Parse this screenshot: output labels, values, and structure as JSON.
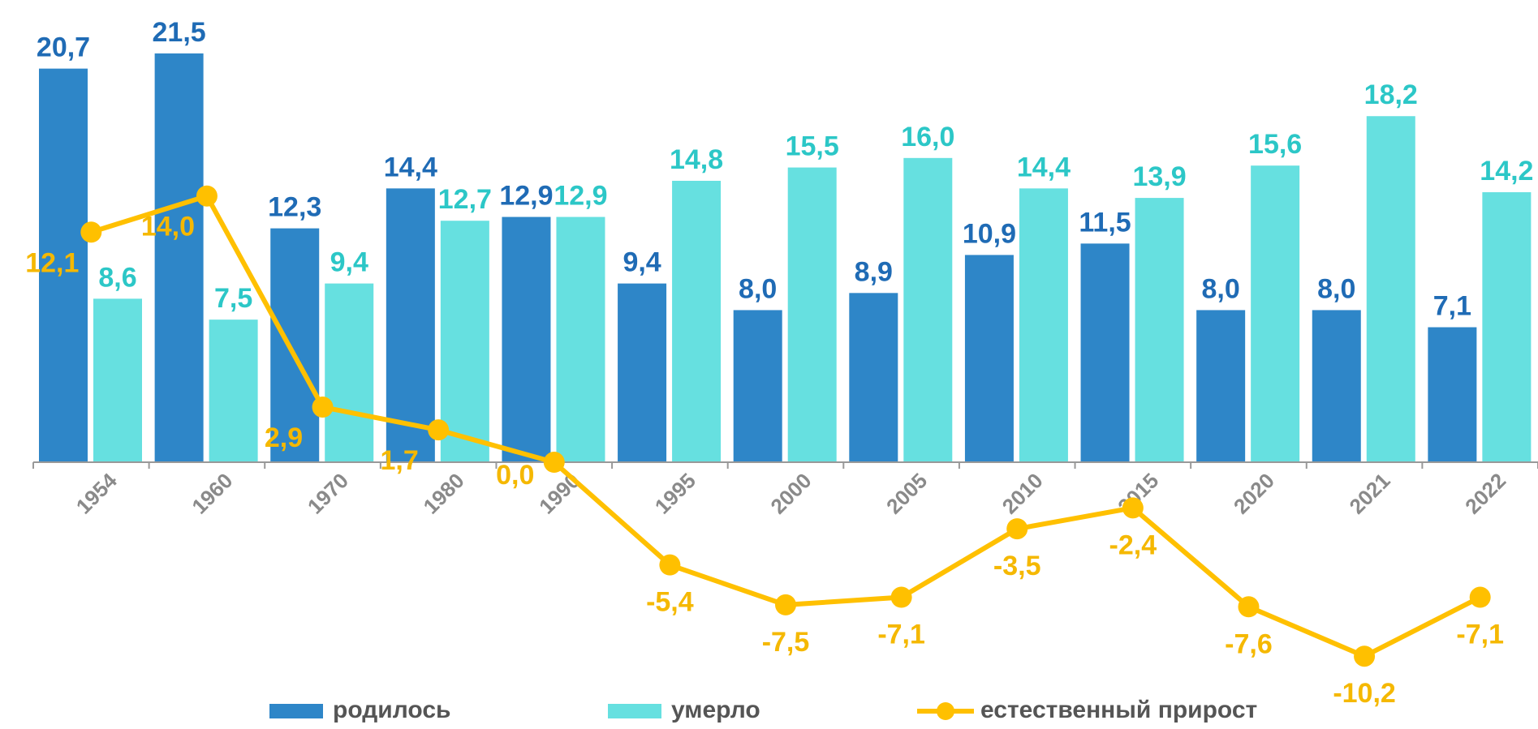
{
  "chart_data": {
    "type": "bar",
    "categories": [
      "1954",
      "1960",
      "1970",
      "1980",
      "1990",
      "1995",
      "2000",
      "2005",
      "2010",
      "2015",
      "2020",
      "2021",
      "2022"
    ],
    "ylim": [
      -11,
      22.5
    ],
    "series": [
      {
        "name": "родилось",
        "type": "bar",
        "color": "#2e86c8",
        "label_color": "#1f6bb5",
        "values": [
          20.7,
          21.5,
          12.3,
          14.4,
          12.9,
          9.4,
          8.0,
          8.9,
          10.9,
          11.5,
          8.0,
          8.0,
          7.1
        ],
        "value_labels": [
          "20,7",
          "21,5",
          "12,3",
          "14,4",
          "12,9",
          "9,4",
          "8,0",
          "8,9",
          "10,9",
          "11,5",
          "8,0",
          "8,0",
          "7,1"
        ]
      },
      {
        "name": "умерло",
        "type": "bar",
        "color": "#66e0e0",
        "label_color": "#2cc7c7",
        "values": [
          8.6,
          7.5,
          9.4,
          12.7,
          12.9,
          14.8,
          15.5,
          16.0,
          14.4,
          13.9,
          15.6,
          18.2,
          14.2
        ],
        "value_labels": [
          "8,6",
          "7,5",
          "9,4",
          "12,7",
          "12,9",
          "14,8",
          "15,5",
          "16,0",
          "14,4",
          "13,9",
          "15,6",
          "18,2",
          "14,2"
        ]
      },
      {
        "name": "естественный прирост",
        "type": "line",
        "color": "#ffc000",
        "label_color": "#f5b800",
        "values": [
          12.1,
          14.0,
          2.9,
          1.7,
          0.0,
          -5.4,
          -7.5,
          -7.1,
          -3.5,
          -2.4,
          -7.6,
          -10.2,
          -7.1
        ],
        "value_labels": [
          "12,1",
          "14,0",
          "2,9",
          "1,7",
          "0,0",
          "-5,4",
          "-7,5",
          "-7,1",
          "-3,5",
          "-2,4",
          "-7,6",
          "-10,2",
          "-7,1"
        ]
      }
    ]
  }
}
